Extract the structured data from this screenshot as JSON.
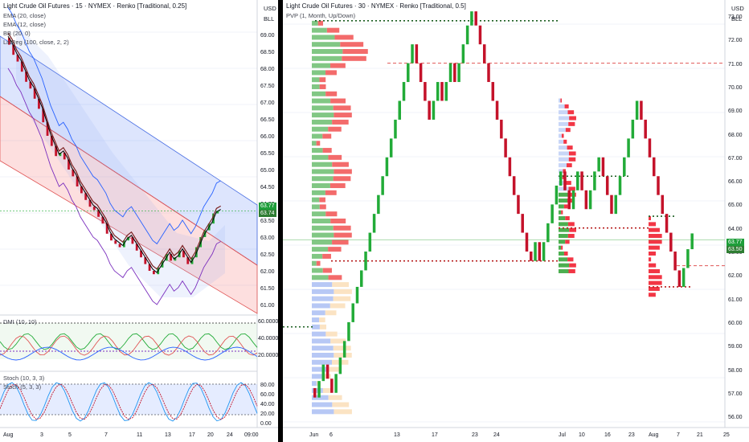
{
  "left_chart": {
    "title": "Light Crude Oil Futures · 15 · NYMEX · Renko [Traditional, 0.25]",
    "indicators": [
      "EMA (20, close)",
      "EMA (12, close)",
      "BB (20, 0)",
      "LinReg (100, close, 2, 2)"
    ],
    "price_ticks": [
      "69.00",
      "68.50",
      "68.00",
      "67.50",
      "67.00",
      "66.50",
      "66.00",
      "65.50",
      "65.00",
      "64.50",
      "64.00",
      "63.50",
      "63.00",
      "62.50",
      "62.00",
      "61.50",
      "61.00"
    ],
    "last_price": "63.77",
    "second_price": "63.74",
    "dmi_label": "DMI (10, 10)",
    "dmi_ticks": [
      "60.0000",
      "40.0000",
      "20.0000"
    ],
    "stoch1_label": "Stoch (10, 3, 3)",
    "stoch2_label": "Stoch (5, 3, 3)",
    "stoch_ticks": [
      "80.00",
      "60.00",
      "40.00",
      "20.00",
      "0.00"
    ],
    "time_ticks": [
      "Aug",
      "3",
      "5",
      "7",
      "11",
      "13",
      "17",
      "20",
      "24"
    ],
    "time_right": "09:00"
  },
  "right_chart": {
    "title": "Light Crude Oil Futures · 30 · NYMEX · Renko [Traditional, 0.5]",
    "indicator": "PVP (1, Month, Up/Down)",
    "price_ticks": [
      "73.00",
      "72.00",
      "71.00",
      "70.00",
      "69.00",
      "68.00",
      "67.00",
      "66.00",
      "65.00",
      "64.00",
      "63.00",
      "62.00",
      "61.00",
      "60.00",
      "59.00",
      "58.00",
      "57.00",
      "56.00"
    ],
    "last_price": "63.77",
    "second_price": "63.50",
    "time_ticks": [
      "Jun",
      "6",
      "13",
      "17",
      "23",
      "24",
      "Jul",
      "10",
      "16",
      "23",
      "Aug",
      "7",
      "21",
      "25"
    ]
  },
  "currency": "USD",
  "currency_sub": "BLL",
  "colors": {
    "up": "#22ab38",
    "down": "#c4122a",
    "last_price_bg": "#1e9e3a",
    "pvp_up": "#4caf50",
    "pvp_down": "#f23645",
    "pvp_blue": "#90aef5"
  }
}
